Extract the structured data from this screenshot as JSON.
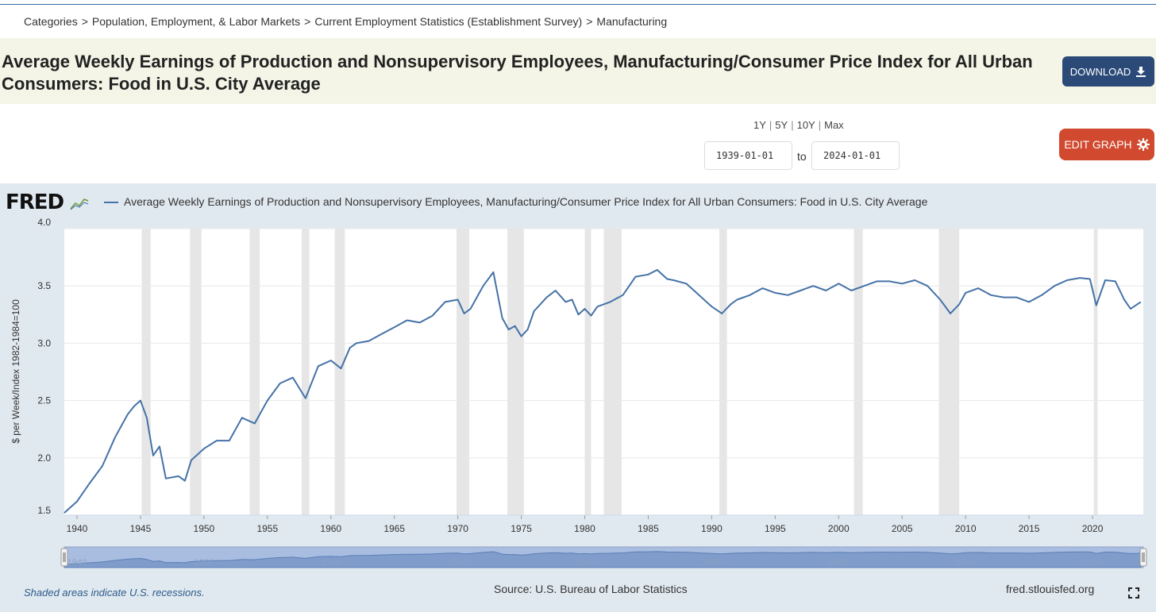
{
  "breadcrumb": {
    "items": [
      "Categories",
      "Population, Employment, & Labor Markets",
      "Current Employment Statistics (Establishment Survey)",
      "Manufacturing"
    ],
    "separator": ">"
  },
  "header": {
    "title": "Average Weekly Earnings of Production and Nonsupervisory Employees, Manufacturing/Consumer Price Index for All Urban Consumers: Food in U.S. City Average",
    "download_label": "DOWNLOAD",
    "download_icon": "download-icon"
  },
  "controls": {
    "ranges": [
      "1Y",
      "5Y",
      "10Y",
      "Max"
    ],
    "start_date": "1939-01-01",
    "to_label": "to",
    "end_date": "2024-01-01",
    "edit_label": "EDIT GRAPH",
    "edit_icon": "gear-icon"
  },
  "colors": {
    "line": "#4572a7",
    "download_bg": "#2b4a78",
    "edit_bg": "#d14a2f",
    "recession": "#e6e6e6",
    "panel_bg": "#e1e9f0"
  },
  "chart_data": {
    "type": "line",
    "logo": "FRED",
    "series": [
      {
        "name": "Average Weekly Earnings of Production and Nonsupervisory Employees, Manufacturing/Consumer Price Index for All Urban Consumers: Food in U.S. City Average",
        "x": [
          1939,
          1940,
          1941,
          1942,
          1943,
          1944,
          1944.5,
          1945,
          1945.5,
          1946,
          1946.5,
          1947,
          1948,
          1948.5,
          1949,
          1950,
          1951,
          1952,
          1953,
          1954,
          1955,
          1956,
          1957,
          1958,
          1959,
          1960,
          1960.8,
          1961.5,
          1962,
          1963,
          1964,
          1965,
          1966,
          1967,
          1968,
          1969,
          1970,
          1970.5,
          1971,
          1971.5,
          1972,
          1972.8,
          1973.5,
          1974,
          1974.5,
          1975,
          1975.5,
          1976,
          1977,
          1977.7,
          1978.5,
          1979,
          1979.5,
          1980,
          1980.5,
          1981,
          1982,
          1983,
          1984,
          1985,
          1985.7,
          1986.5,
          1987,
          1988,
          1989,
          1990,
          1990.8,
          1991.5,
          1992,
          1993,
          1994,
          1995,
          1996,
          1997,
          1998,
          1999,
          2000,
          2001,
          2002,
          2003,
          2004,
          2005,
          2006,
          2007,
          2008,
          2008.8,
          2009.5,
          2010,
          2011,
          2012,
          2013,
          2014,
          2015,
          2016,
          2017,
          2018,
          2019,
          2019.8,
          2020.3,
          2021,
          2021.8,
          2022.5,
          2023,
          2023.8
        ],
        "values": [
          1.52,
          1.62,
          1.78,
          1.93,
          2.18,
          2.38,
          2.45,
          2.5,
          2.35,
          2.02,
          2.1,
          1.82,
          1.84,
          1.8,
          1.98,
          2.08,
          2.15,
          2.15,
          2.35,
          2.3,
          2.5,
          2.65,
          2.7,
          2.52,
          2.8,
          2.85,
          2.78,
          2.96,
          3.0,
          3.02,
          3.08,
          3.14,
          3.2,
          3.18,
          3.24,
          3.36,
          3.38,
          3.26,
          3.3,
          3.4,
          3.5,
          3.62,
          3.22,
          3.12,
          3.15,
          3.06,
          3.12,
          3.28,
          3.4,
          3.46,
          3.36,
          3.38,
          3.25,
          3.3,
          3.24,
          3.32,
          3.36,
          3.42,
          3.58,
          3.6,
          3.64,
          3.56,
          3.55,
          3.52,
          3.42,
          3.32,
          3.26,
          3.34,
          3.38,
          3.42,
          3.48,
          3.44,
          3.42,
          3.46,
          3.5,
          3.46,
          3.52,
          3.46,
          3.5,
          3.54,
          3.54,
          3.52,
          3.55,
          3.5,
          3.38,
          3.26,
          3.34,
          3.44,
          3.48,
          3.42,
          3.4,
          3.4,
          3.36,
          3.42,
          3.5,
          3.55,
          3.57,
          3.56,
          3.33,
          3.55,
          3.54,
          3.38,
          3.3,
          3.36
        ]
      }
    ],
    "x_ticks": [
      1940,
      1945,
      1950,
      1955,
      1960,
      1965,
      1970,
      1975,
      1980,
      1985,
      1990,
      1995,
      2000,
      2005,
      2010,
      2015,
      2020
    ],
    "y_ticks": [
      "1.5",
      "2.0",
      "2.5",
      "3.0",
      "3.5",
      "4.0"
    ],
    "xlim": [
      1939,
      2024
    ],
    "ylim": [
      1.5,
      4.0
    ],
    "ylabel": "$ per Week/Index 1982-1984=100",
    "recessions": [
      [
        1945.1,
        1945.8
      ],
      [
        1948.9,
        1949.8
      ],
      [
        1953.6,
        1954.4
      ],
      [
        1957.7,
        1958.3
      ],
      [
        1960.3,
        1961.1
      ],
      [
        1969.9,
        1970.9
      ],
      [
        1973.9,
        1975.2
      ],
      [
        1980.0,
        1980.5
      ],
      [
        1981.5,
        1982.9
      ],
      [
        1990.6,
        1991.2
      ],
      [
        2001.2,
        2001.9
      ],
      [
        2007.9,
        2009.5
      ],
      [
        2020.1,
        2020.4
      ]
    ],
    "navigator_ticks": [
      "1940",
      "1950",
      "1960",
      "1970",
      "1980",
      "1990",
      "2000",
      "2010",
      "2020"
    ],
    "grid": true
  },
  "footer": {
    "note": "Shaded areas indicate U.S. recessions.",
    "source": "Source: U.S. Bureau of Labor Statistics",
    "site": "fred.stlouisfed.org",
    "expand_icon": "expand-icon"
  }
}
